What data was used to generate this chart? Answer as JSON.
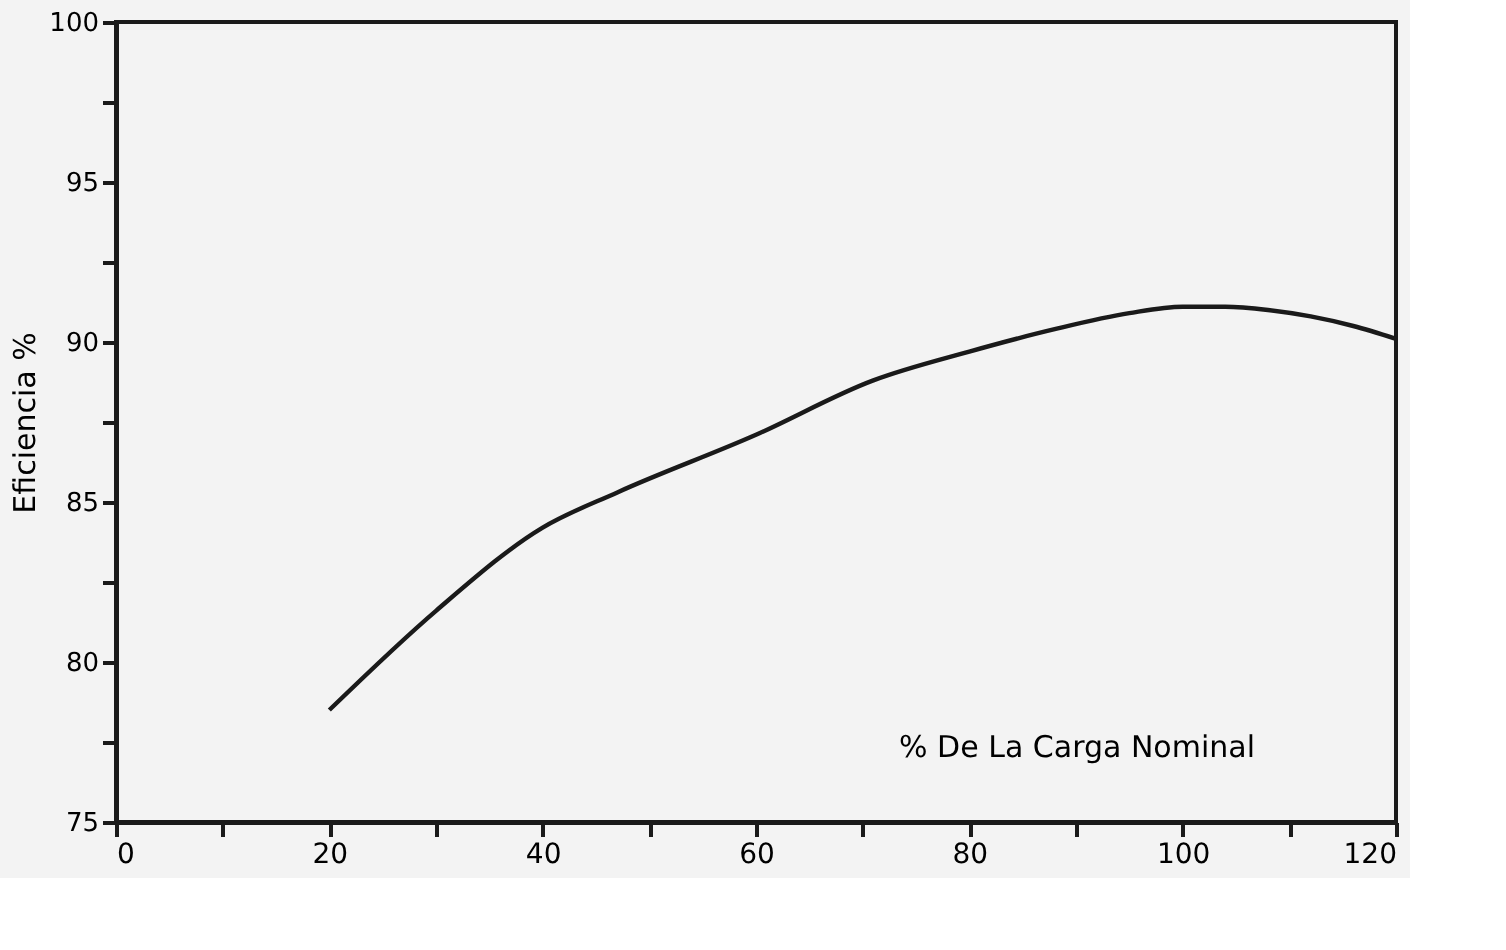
{
  "chart_data": {
    "type": "line",
    "xlabel": "% De La Carga Nominal",
    "ylabel": "Eficiencia %",
    "x": [
      20,
      30,
      40,
      47,
      60,
      71,
      80,
      88,
      95,
      100,
      104,
      108,
      112,
      116,
      120
    ],
    "series": [
      {
        "color": "#1a1a1a",
        "values": [
          78.5,
          81.6,
          84.2,
          85.3,
          87.1,
          88.8,
          89.7,
          90.4,
          90.9,
          91.1,
          91.1,
          91.0,
          90.8,
          90.5,
          90.1
        ]
      }
    ],
    "xlim": [
      0,
      120
    ],
    "xticks": [
      0,
      {
        "value": 10,
        "label": null
      },
      20,
      {
        "value": 30,
        "label": null
      },
      40,
      {
        "value": 50,
        "label": null
      },
      60,
      {
        "value": 70,
        "label": null
      },
      80,
      {
        "value": 90,
        "label": null
      },
      100,
      {
        "value": 110,
        "label": null
      },
      120
    ],
    "ylim": [
      75,
      100
    ],
    "yticks": [
      75,
      {
        "value": 77.5,
        "label": null
      },
      80,
      {
        "value": 82.5,
        "label": null
      },
      85,
      {
        "value": 87.5,
        "label": null
      },
      90,
      {
        "value": 92.5,
        "label": null
      },
      95,
      {
        "value": 97.5,
        "label": null
      },
      100
    ],
    "grid": false,
    "legend": false,
    "marker": "none",
    "line_style": "solid"
  }
}
